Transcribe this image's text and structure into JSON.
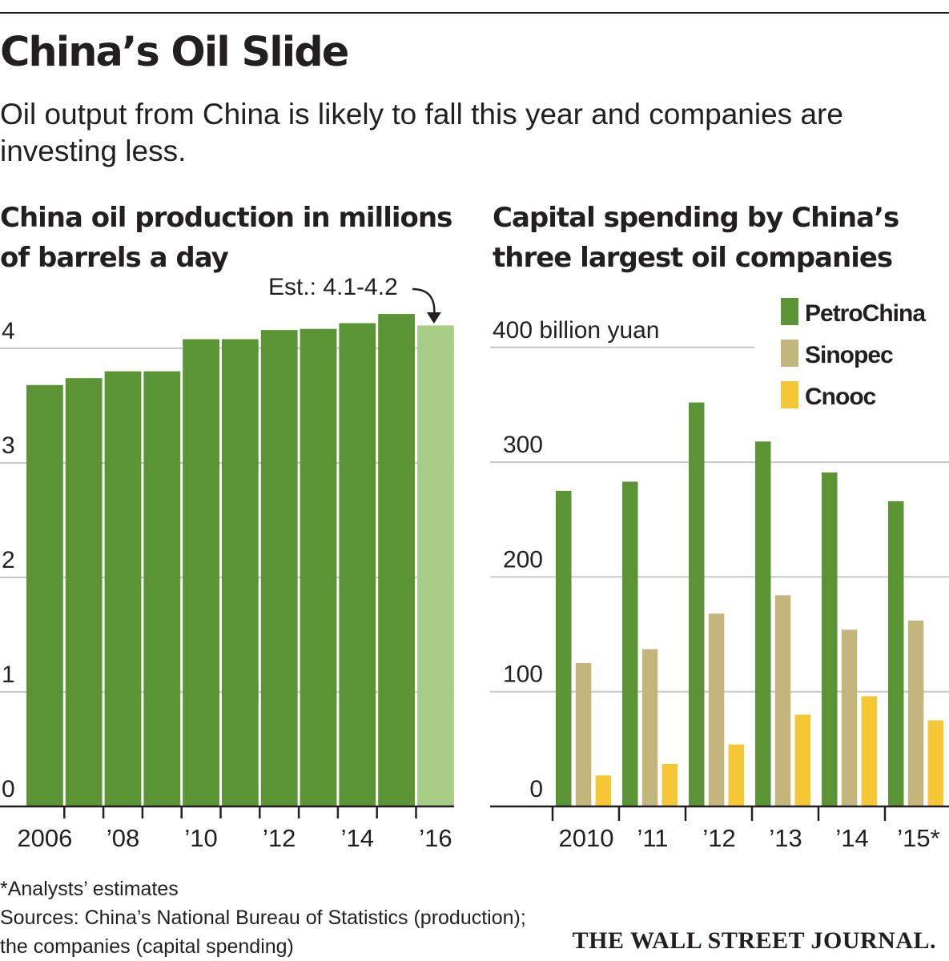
{
  "header": {
    "title": "China’s Oil Slide",
    "subtitle": "Oil output from China is likely to fall this year and companies are investing less."
  },
  "chart_data": [
    {
      "type": "bar",
      "title": "China oil production in millions of barrels a day",
      "categories": [
        "2006",
        "2007",
        "2008",
        "2009",
        "2010",
        "2011",
        "2012",
        "2013",
        "2014",
        "2015",
        "2016"
      ],
      "tick_labels": [
        "2006",
        "’08",
        "’10",
        "’12",
        "’14",
        "’16"
      ],
      "y_ticks": [
        "0",
        "1",
        "2",
        "3",
        "4"
      ],
      "values": [
        3.68,
        3.74,
        3.8,
        3.8,
        4.08,
        4.08,
        4.16,
        4.17,
        4.22,
        4.3,
        4.2
      ],
      "estimated": [
        false,
        false,
        false,
        false,
        false,
        false,
        false,
        false,
        false,
        false,
        true
      ],
      "annotation": "Est.: 4.1-4.2",
      "ylim": [
        0,
        4.3
      ],
      "colors": {
        "actual": "#5b9434",
        "estimate": "#a6cd85"
      }
    },
    {
      "type": "bar",
      "title": "Capital spending by China’s three largest oil companies",
      "unit_label": "400 billion yuan",
      "categories": [
        "2010",
        "2011",
        "2012",
        "2013",
        "2014",
        "2015"
      ],
      "tick_labels": [
        "2010",
        "’11",
        "’12",
        "’13",
        "’14",
        "’15*"
      ],
      "y_ticks": [
        "0",
        "100",
        "200",
        "300"
      ],
      "series": [
        {
          "name": "PetroChina",
          "color": "#5b9434",
          "values": [
            275,
            283,
            352,
            318,
            291,
            266
          ]
        },
        {
          "name": "Sinopec",
          "color": "#c3b57c",
          "values": [
            125,
            137,
            168,
            184,
            154,
            162
          ]
        },
        {
          "name": "Cnooc",
          "color": "#f5c734",
          "values": [
            27,
            37,
            54,
            80,
            96,
            75
          ]
        }
      ],
      "ylim": [
        0,
        400
      ]
    }
  ],
  "footer": {
    "note": "*Analysts’ estimates",
    "sources_line1": "Sources: China’s National Bureau of Statistics (production);",
    "sources_line2": "the companies (capital spending)",
    "credit": "THE WALL STREET JOURNAL."
  }
}
